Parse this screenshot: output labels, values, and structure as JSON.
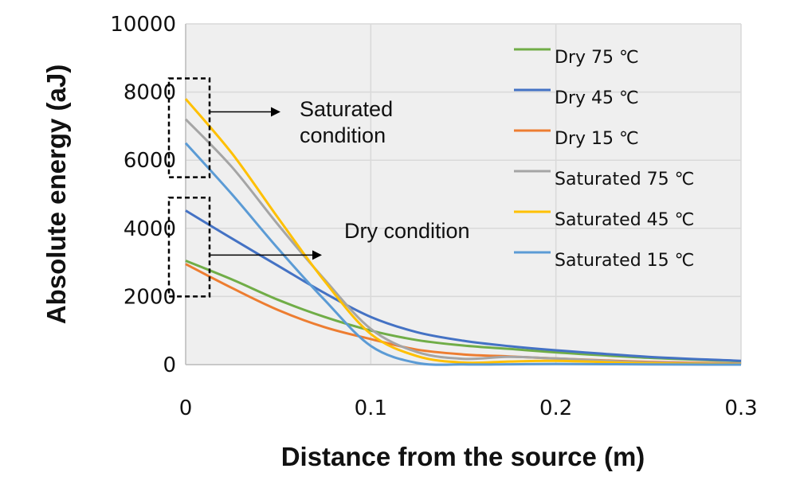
{
  "chart_data": {
    "type": "line",
    "xlabel": "Distance from the source (m)",
    "ylabel": "Absolute energy (aJ)",
    "xlim": [
      0,
      0.3
    ],
    "ylim": [
      0,
      10000
    ],
    "x_ticks": [
      "0",
      "0.1",
      "0.2",
      "0.3"
    ],
    "y_ticks": [
      "0",
      "2000",
      "4000",
      "6000",
      "8000",
      "10000"
    ],
    "grid": true,
    "legend_position": "top-right",
    "x": [
      0,
      0.025,
      0.05,
      0.075,
      0.1,
      0.125,
      0.15,
      0.175,
      0.2,
      0.25,
      0.3
    ],
    "series": [
      {
        "name": "Dry 75 ℃",
        "color": "#70ad47",
        "values": [
          3050,
          2500,
          1900,
          1400,
          1000,
          720,
          560,
          460,
          360,
          200,
          100
        ]
      },
      {
        "name": "Dry 45 ℃",
        "color": "#4472c4",
        "values": [
          4520,
          3700,
          2900,
          2100,
          1400,
          950,
          700,
          540,
          420,
          230,
          110
        ]
      },
      {
        "name": "Dry 15 ℃",
        "color": "#ed7d31",
        "values": [
          2950,
          2250,
          1600,
          1100,
          750,
          440,
          300,
          240,
          180,
          80,
          30
        ]
      },
      {
        "name": "Saturated 75 ℃",
        "color": "#a5a5a5",
        "values": [
          7200,
          5800,
          4100,
          2500,
          1050,
          370,
          170,
          230,
          180,
          60,
          20
        ]
      },
      {
        "name": "Saturated 45 ℃",
        "color": "#ffc000",
        "values": [
          7800,
          6200,
          4300,
          2450,
          900,
          250,
          60,
          90,
          110,
          40,
          10
        ]
      },
      {
        "name": "Saturated 15 ℃",
        "color": "#5b9bd5",
        "values": [
          6500,
          5000,
          3400,
          1900,
          550,
          50,
          5,
          10,
          20,
          5,
          0
        ]
      }
    ],
    "annotations": [
      {
        "text": "Saturated condition",
        "lines": [
          "Saturated",
          "condition"
        ],
        "box_ylim": [
          5500,
          8400
        ]
      },
      {
        "text": "Dry condition",
        "lines": [
          "Dry condition"
        ],
        "box_ylim": [
          2000,
          4900
        ]
      }
    ]
  }
}
